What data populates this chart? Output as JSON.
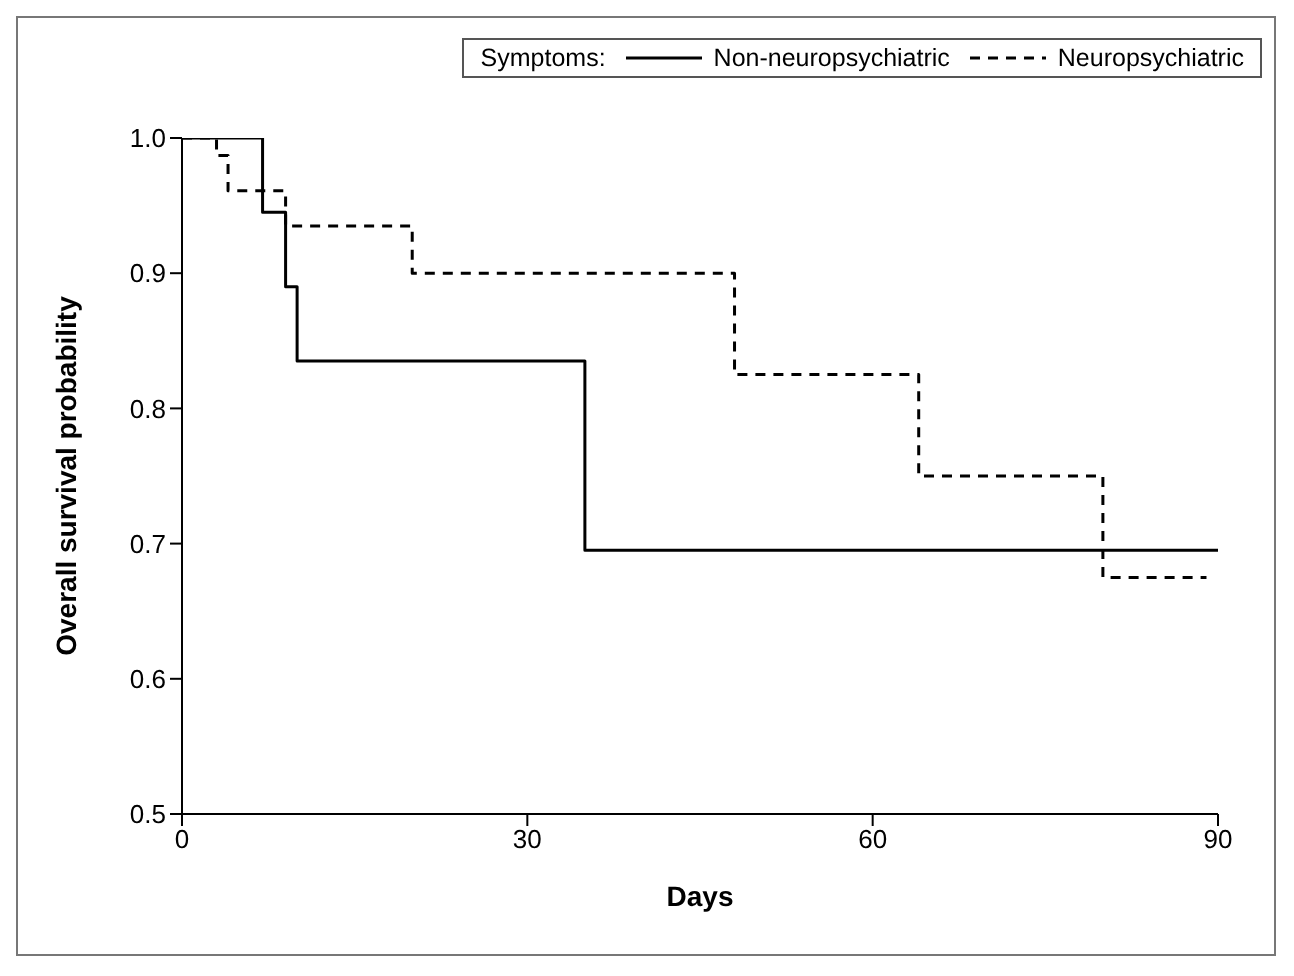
{
  "chart_data": {
    "type": "step",
    "xlabel": "Days",
    "ylabel": "Overall survival probability",
    "legend_title": "Symptoms:",
    "legend": "top right",
    "marker": "none",
    "xlim": [
      0,
      90
    ],
    "xticks": [
      0,
      30,
      60,
      90
    ],
    "ylim": [
      0.5,
      1.0
    ],
    "yticks": [
      {
        "value": 0.5,
        "label": "0.5"
      },
      {
        "value": 0.6,
        "label": "0.6"
      },
      {
        "value": 0.7,
        "label": "0.7"
      },
      {
        "value": 0.8,
        "label": "0.8"
      },
      {
        "value": 0.9,
        "label": "0.9"
      },
      {
        "value": 1.0,
        "label": "1.0"
      }
    ],
    "series": [
      {
        "name": "Non-neuropsychiatric",
        "color": "#000000",
        "line_style": "solid",
        "x": [
          0,
          7,
          9,
          10,
          35,
          90
        ],
        "values": [
          1.0,
          0.945,
          0.89,
          0.835,
          0.695,
          0.695
        ]
      },
      {
        "name": "Neuropsychiatric",
        "color": "#000000",
        "line_style": "dashed",
        "x": [
          0,
          3,
          4,
          9,
          20,
          48,
          64,
          80,
          89
        ],
        "values": [
          1.0,
          0.987,
          0.961,
          0.935,
          0.9,
          0.825,
          0.75,
          0.675,
          0.675
        ]
      }
    ]
  }
}
